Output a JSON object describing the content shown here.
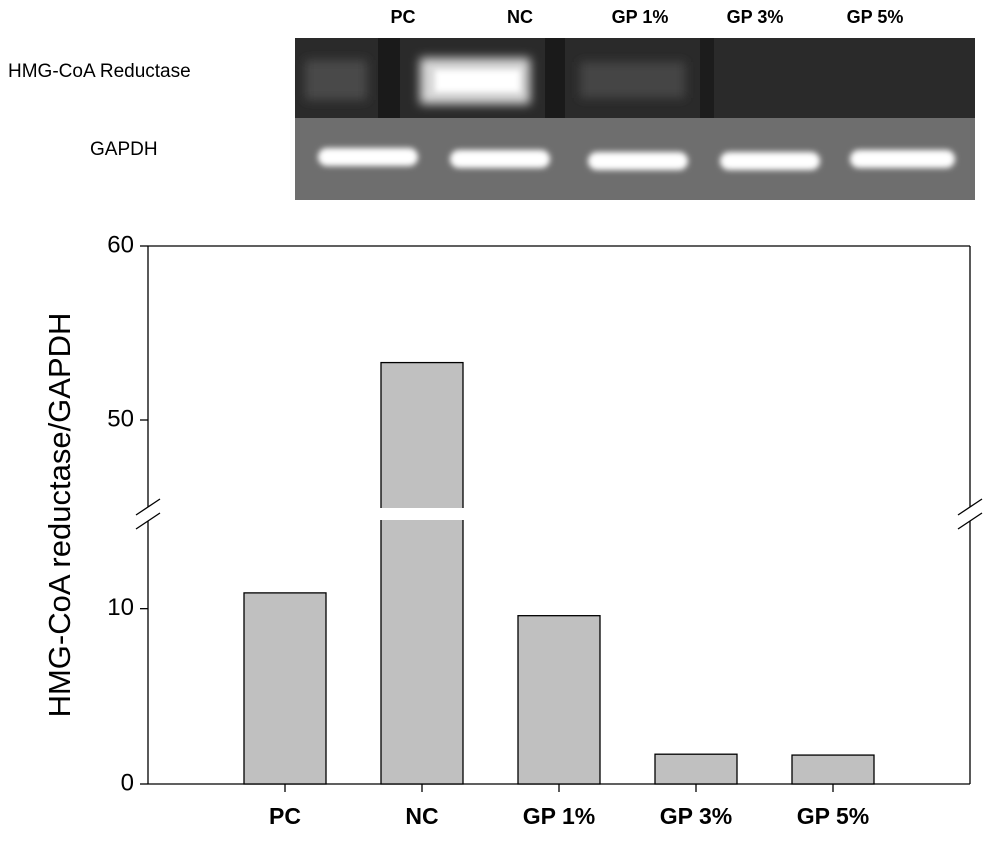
{
  "gel": {
    "lanes": [
      "PC",
      "NC",
      "GP  1%",
      "GP  3%",
      "GP  5%"
    ],
    "rows": [
      "HMG-CoA  Reductase",
      "GAPDH"
    ]
  },
  "chart_data": {
    "type": "bar",
    "ylabel": "HMG-CoA reductase/GAPDH",
    "categories": [
      "PC",
      "NC",
      "GP 1%",
      "GP 3%",
      "GP 5%"
    ],
    "values": [
      10.9,
      53.3,
      9.6,
      1.7,
      1.65
    ],
    "color": "#c0c0c0",
    "y_segments": [
      {
        "ylim": [
          0,
          15
        ],
        "yticks": [
          0,
          10
        ]
      },
      {
        "ylim": [
          45,
          60
        ],
        "yticks": [
          50,
          60
        ]
      }
    ]
  }
}
